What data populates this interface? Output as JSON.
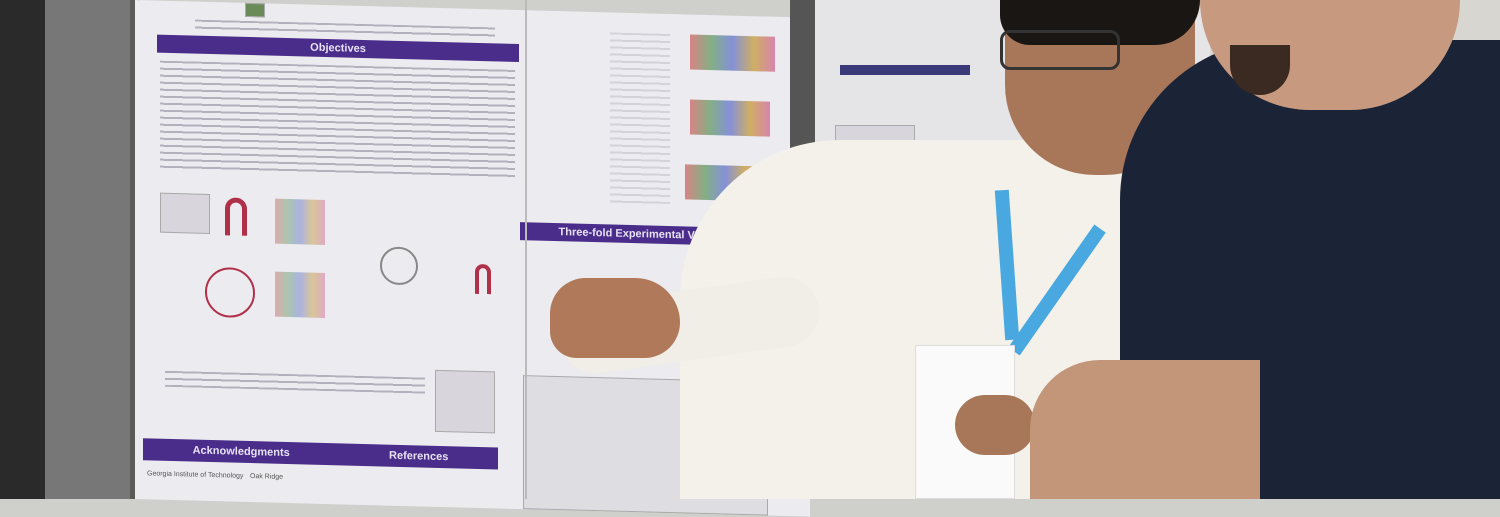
{
  "poster": {
    "objectives_header": "Objectives",
    "validation_header": "Three-fold Experimental Validation",
    "acknowledgments_header": "Acknowledgments",
    "references_header": "References",
    "logos": [
      "Georgia Institute of Technology",
      "Oak Ridge"
    ]
  },
  "colors": {
    "poster_band": "#4a2d8a",
    "lanyard": "#4aa8e0",
    "shirt_dark": "#1a2436"
  }
}
